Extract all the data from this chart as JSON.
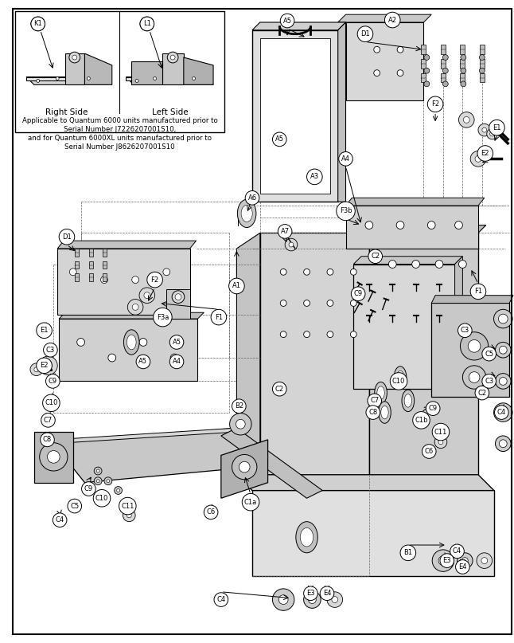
{
  "figsize": [
    6.46,
    8.07
  ],
  "dpi": 100,
  "bg_color": "#ffffff",
  "note_text_line1": "Applicable to Quantum 6000 units manufactured prior to",
  "note_text_line2": "Serial Number J7226207001S10,",
  "note_text_line3": "and for Quantum 6000XL units manufactured prior to",
  "note_text_line4": "Serial Number J8626207001S10",
  "right_side_label": "Right Side",
  "left_side_label": "Left Side",
  "gray_fill": "#d0d0d0",
  "dark_gray": "#a0a0a0",
  "light_gray": "#e8e8e8",
  "mid_gray": "#b8b8b8",
  "white": "#ffffff",
  "black": "#000000"
}
